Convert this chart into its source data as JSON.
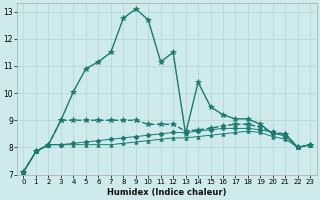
{
  "xlabel": "Humidex (Indice chaleur)",
  "xlim": [
    -0.5,
    23.5
  ],
  "ylim": [
    7,
    13.3
  ],
  "yticks": [
    7,
    8,
    9,
    10,
    11,
    12,
    13
  ],
  "xticks": [
    0,
    1,
    2,
    3,
    4,
    5,
    6,
    7,
    8,
    9,
    10,
    11,
    12,
    13,
    14,
    15,
    16,
    17,
    18,
    19,
    20,
    21,
    22,
    23
  ],
  "bg_color": "#ceeaec",
  "grid_color": "#b8d8da",
  "line_color": "#1a7a6e",
  "series": [
    [
      7.1,
      7.85,
      8.1,
      9.0,
      10.05,
      10.9,
      11.15,
      11.5,
      12.75,
      13.1,
      12.7,
      11.15,
      11.5,
      8.5,
      10.4,
      9.5,
      9.2,
      9.05,
      9.05,
      8.85,
      8.5,
      8.5,
      8.0,
      8.1
    ],
    [
      7.1,
      7.85,
      8.1,
      9.0,
      9.0,
      9.0,
      9.0,
      9.0,
      9.0,
      9.0,
      8.85,
      8.85,
      8.85,
      8.6,
      8.65,
      8.7,
      8.8,
      8.85,
      8.85,
      8.75,
      8.55,
      8.5,
      8.0,
      8.1
    ],
    [
      7.1,
      7.85,
      8.1,
      8.1,
      8.15,
      8.2,
      8.25,
      8.3,
      8.35,
      8.4,
      8.45,
      8.5,
      8.55,
      8.55,
      8.6,
      8.65,
      8.7,
      8.7,
      8.7,
      8.65,
      8.55,
      8.4,
      8.0,
      8.1
    ],
    [
      7.1,
      7.85,
      8.1,
      8.1,
      8.1,
      8.1,
      8.1,
      8.1,
      8.15,
      8.2,
      8.25,
      8.3,
      8.35,
      8.35,
      8.4,
      8.45,
      8.5,
      8.55,
      8.6,
      8.55,
      8.4,
      8.3,
      8.0,
      8.1
    ]
  ],
  "markers": [
    "*",
    "*",
    "D",
    "^"
  ],
  "markersizes": [
    4,
    4,
    2.5,
    2.5
  ],
  "linewidths": [
    1.0,
    1.0,
    0.7,
    0.7
  ],
  "linestyles": [
    "-",
    "--",
    "-",
    "-"
  ]
}
